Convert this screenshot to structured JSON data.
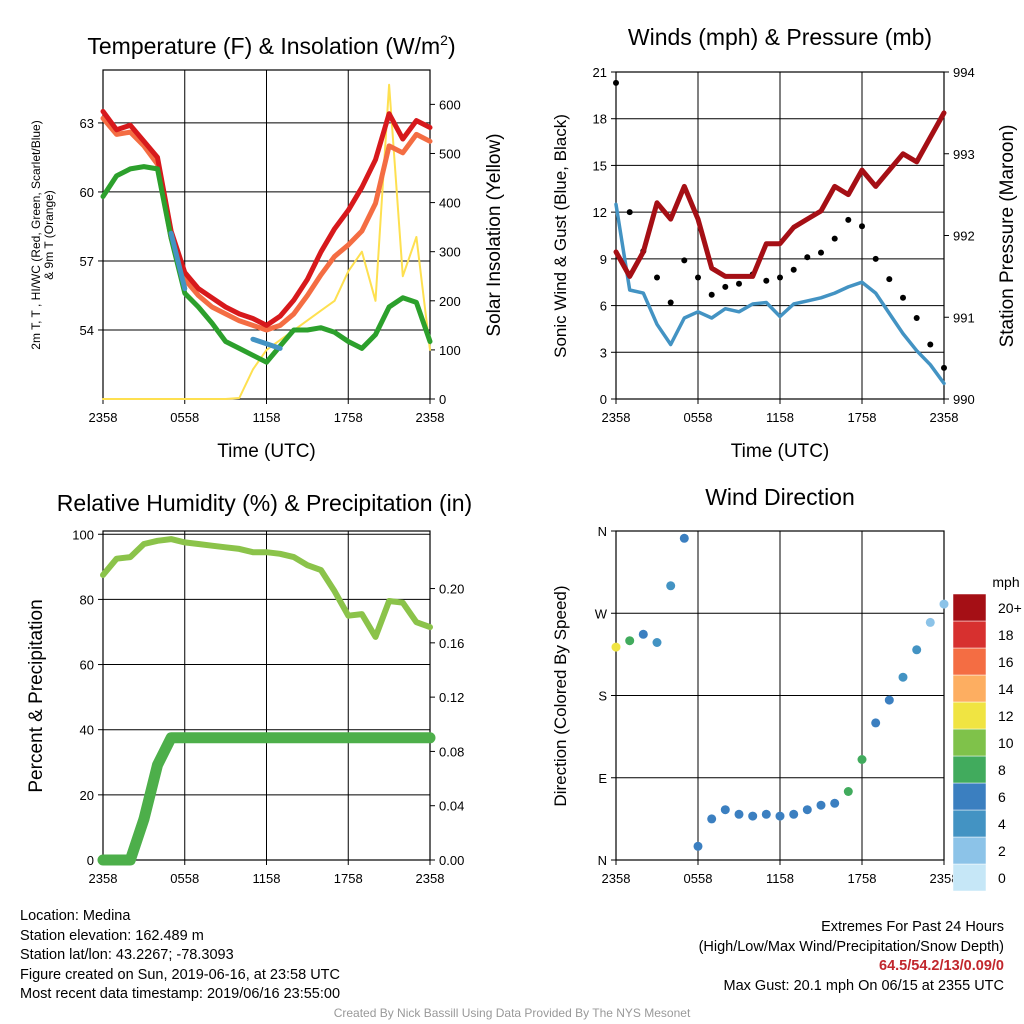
{
  "chart_data": [
    {
      "type": "line",
      "title": "Temperature (F) & Insolation (W/m²)",
      "title_main": "Temperature (F) & Insolation (W/m",
      "title_sup": "2",
      "title_end": ")",
      "xlabel": "Time (UTC)",
      "ylabel_left_line1": "2m T, T , HI/WC (Red, Green, Scarlet/Blue)",
      "ylabel_left_line2": "& 9m T (Orange)",
      "ylabel_right": "Solar Insolation (Yellow)",
      "x_ticks": [
        "2358",
        "0558",
        "1158",
        "1758",
        "2358"
      ],
      "y_left_ticks": [
        "54",
        "57",
        "60",
        "63"
      ],
      "y_right_ticks": [
        "0",
        "100",
        "200",
        "300",
        "400",
        "500",
        "600"
      ],
      "ylim_left": [
        51.0,
        65.3
      ],
      "ylim_right": [
        0,
        670
      ],
      "x": [
        0,
        1,
        2,
        3,
        4,
        5,
        6,
        7,
        8,
        9,
        10,
        11,
        12,
        13,
        14,
        15,
        16,
        17,
        18,
        19,
        20,
        21,
        22,
        23,
        24
      ],
      "series": [
        {
          "color": "#d7191c",
          "values": [
            63.5,
            62.7,
            62.9,
            62.2,
            61.5,
            58.3,
            56.5,
            55.8,
            55.4,
            55.0,
            54.7,
            54.5,
            54.2,
            54.6,
            55.3,
            56.2,
            57.4,
            58.4,
            59.2,
            60.2,
            61.4,
            63.4,
            62.3,
            63.1,
            62.8
          ]
        },
        {
          "color": "#f46d43",
          "values": [
            63.2,
            62.5,
            62.6,
            62.0,
            61.2,
            58.0,
            56.2,
            55.5,
            55.0,
            54.7,
            54.4,
            54.2,
            54.0,
            54.2,
            54.7,
            55.5,
            56.4,
            57.2,
            57.7,
            58.3,
            59.5,
            62.0,
            61.7,
            62.5,
            62.2
          ]
        },
        {
          "color": "#2ca02c",
          "values": [
            59.8,
            60.7,
            61.0,
            61.1,
            61.0,
            58.0,
            55.6,
            55.0,
            54.3,
            53.5,
            53.2,
            52.9,
            52.6,
            53.3,
            54.0,
            54.0,
            54.1,
            53.9,
            53.5,
            53.2,
            53.8,
            55.0,
            55.4,
            55.2,
            53.5
          ]
        },
        {
          "color": "#4393c3",
          "values": [
            null,
            null,
            null,
            null,
            null,
            58.2,
            55.8,
            null,
            null,
            null,
            null,
            53.6,
            53.4,
            53.2,
            null,
            null,
            54.2,
            null,
            null,
            null,
            null,
            null,
            null,
            54.8,
            null
          ]
        },
        {
          "color": "#fee050",
          "axis": "right",
          "values": [
            0,
            0,
            0,
            0,
            0,
            0,
            0,
            0,
            0,
            0,
            2,
            60,
            100,
            120,
            140,
            160,
            180,
            200,
            260,
            300,
            200,
            640,
            250,
            330,
            100
          ]
        }
      ]
    },
    {
      "type": "line",
      "title": "Winds (mph) & Pressure (mb)",
      "xlabel": "Time (UTC)",
      "ylabel_left": "Sonic Wind & Gust (Blue, Black)",
      "ylabel_right": "Station Pressure (Maroon)",
      "x_ticks": [
        "2358",
        "0558",
        "1158",
        "1758",
        "2358"
      ],
      "y_left_ticks": [
        "0",
        "3",
        "6",
        "9",
        "12",
        "15",
        "18",
        "21"
      ],
      "y_right_ticks": [
        "990",
        "991",
        "992",
        "993",
        "994"
      ],
      "ylim_left": [
        0,
        21
      ],
      "ylim_right": [
        990,
        994
      ],
      "x": [
        0,
        1,
        2,
        3,
        4,
        5,
        6,
        7,
        8,
        9,
        10,
        11,
        12,
        13,
        14,
        15,
        16,
        17,
        18,
        19,
        20,
        21,
        22,
        23,
        24
      ],
      "series": [
        {
          "color": "#4393c3",
          "values": [
            12.5,
            7.0,
            6.8,
            4.8,
            3.5,
            5.2,
            5.6,
            5.2,
            5.8,
            5.6,
            6.1,
            6.2,
            5.3,
            6.1,
            6.3,
            6.5,
            6.8,
            7.2,
            7.5,
            6.8,
            5.5,
            4.2,
            3.1,
            2.2,
            1.0
          ]
        },
        {
          "color": "#000000",
          "values": [
            20.3,
            12.0,
            9.5,
            7.8,
            6.2,
            8.9,
            7.8,
            6.7,
            7.2,
            7.4,
            8.0,
            7.6,
            7.8,
            8.3,
            9.1,
            9.4,
            10.3,
            11.5,
            11.1,
            9.0,
            7.7,
            6.5,
            5.2,
            3.5,
            2.0
          ]
        },
        {
          "color": "#a50f15",
          "axis": "right",
          "values": [
            991.8,
            991.5,
            991.8,
            992.4,
            992.2,
            992.6,
            992.2,
            991.6,
            991.5,
            991.5,
            991.5,
            991.9,
            991.9,
            992.1,
            992.2,
            992.3,
            992.6,
            992.5,
            992.8,
            992.6,
            992.8,
            993.0,
            992.9,
            993.2,
            993.5
          ]
        }
      ]
    },
    {
      "type": "line",
      "title": "Relative Humidity (%) & Precipitation (in)",
      "xlabel": "",
      "ylabel_left": "Percent & Precipitation",
      "x_ticks": [
        "2358",
        "0558",
        "1158",
        "1758",
        "2358"
      ],
      "y_left_ticks": [
        "0",
        "20",
        "40",
        "60",
        "80",
        "100"
      ],
      "y_right_ticks": [
        "0.00",
        "0.04",
        "0.08",
        "0.12",
        "0.16",
        "0.20"
      ],
      "ylim_left": [
        0,
        101
      ],
      "ylim_right": [
        0,
        0.2424
      ],
      "x": [
        0,
        1,
        2,
        3,
        4,
        5,
        6,
        7,
        8,
        9,
        10,
        11,
        12,
        13,
        14,
        15,
        16,
        17,
        18,
        19,
        20,
        21,
        22,
        23,
        24
      ],
      "series": [
        {
          "color": "#8bc34a",
          "values": [
            87.5,
            92.5,
            93.0,
            97.0,
            98.0,
            98.5,
            97.5,
            97.0,
            96.5,
            96.0,
            95.5,
            94.5,
            94.5,
            94.0,
            93.0,
            90.5,
            89.0,
            82.5,
            75.0,
            75.5,
            68.5,
            79.5,
            79.0,
            73.0,
            71.5
          ]
        },
        {
          "color": "#4daf4a",
          "axis": "right",
          "values": [
            0.0,
            0.0,
            0.0,
            0.03,
            0.07,
            0.09,
            0.09,
            0.09,
            0.09,
            0.09,
            0.09,
            0.09,
            0.09,
            0.09,
            0.09,
            0.09,
            0.09,
            0.09,
            0.09,
            0.09,
            0.09,
            0.09,
            0.09,
            0.09,
            0.09
          ]
        }
      ]
    },
    {
      "type": "scatter",
      "title": "Wind Direction",
      "ylabel": "Direction (Colored By Speed)",
      "x_ticks": [
        "2358",
        "0558",
        "1158",
        "1758",
        "2358"
      ],
      "y_ticks": [
        "N",
        "E",
        "S",
        "W",
        "N"
      ],
      "ylim": [
        0,
        360
      ],
      "legend_title": "mph",
      "legend_labels": [
        "0",
        "2",
        "4",
        "6",
        "8",
        "10",
        "12",
        "14",
        "16",
        "18",
        "20+"
      ],
      "legend_colors": [
        "#c6e7f7",
        "#8cc3e8",
        "#4393c3",
        "#3b7fc0",
        "#41ab5d",
        "#7fc24a",
        "#f0e442",
        "#fdae61",
        "#f46d43",
        "#d7302f",
        "#a50f15"
      ],
      "x": [
        0,
        1,
        2,
        3,
        4,
        5,
        6,
        7,
        8,
        9,
        10,
        11,
        12,
        13,
        14,
        15,
        16,
        17,
        18,
        19,
        20,
        21,
        22,
        23,
        24
      ],
      "values": [
        233,
        240,
        247,
        238,
        300,
        352,
        15,
        45,
        55,
        50,
        48,
        50,
        48,
        50,
        55,
        60,
        62,
        75,
        110,
        150,
        175,
        200,
        230,
        260,
        280
      ]
    }
  ],
  "info": {
    "location": "Location: Medina",
    "elevation": "Station elevation: 162.489 m",
    "latlon": "Station lat/lon: 43.2267; -78.3093",
    "created": "Figure created on Sun, 2019-06-16, at 23:58 UTC",
    "recent": "Most recent data timestamp: 2019/06/16 23:55:00"
  },
  "extremes": {
    "title": "Extremes For Past 24 Hours",
    "subtitle": "(High/Low/Max Wind/Precipitation/Snow Depth)",
    "values": "64.5/54.2/13/0.09/0",
    "gust": "Max Gust: 20.1 mph On 06/15 at 2355 UTC"
  },
  "credit": "Created By Nick Bassill Using Data Provided By The NYS Mesonet"
}
